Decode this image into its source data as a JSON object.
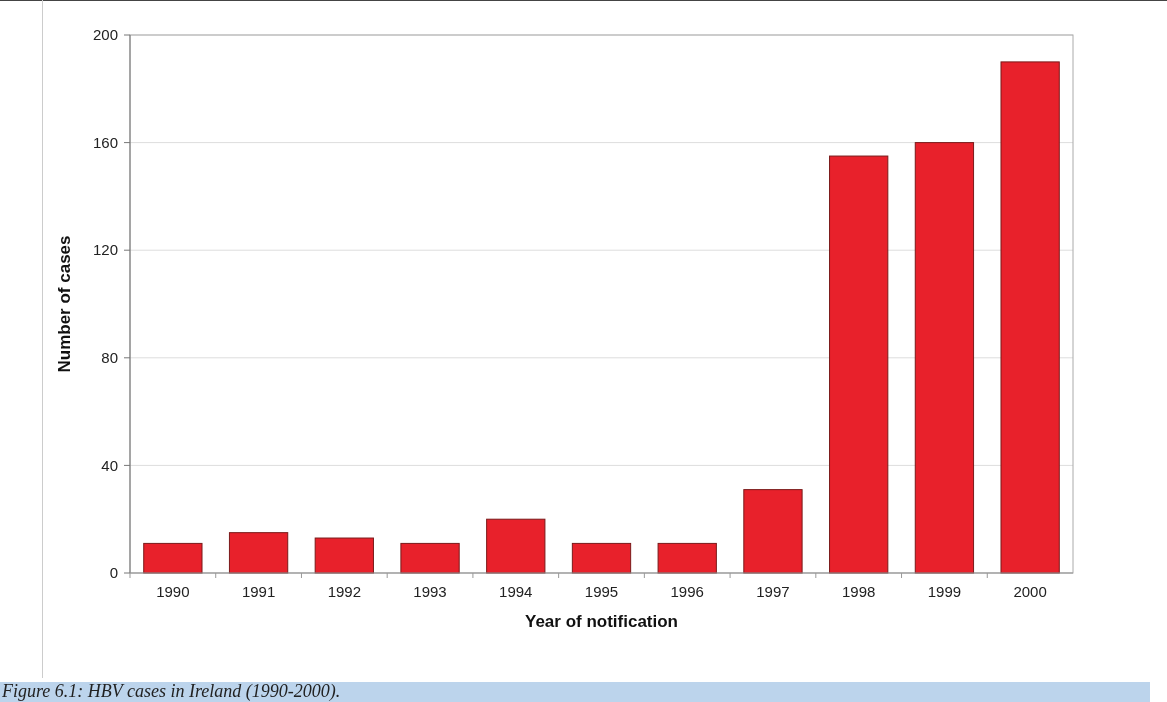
{
  "chart_data": {
    "type": "bar",
    "xlabel": "Year of notification",
    "ylabel": "Number of cases",
    "categories": [
      "1990",
      "1991",
      "1992",
      "1993",
      "1994",
      "1995",
      "1996",
      "1997",
      "1998",
      "1999",
      "2000"
    ],
    "values": [
      11,
      15,
      13,
      11,
      20,
      11,
      11,
      31,
      155,
      160,
      190
    ],
    "color": "#e8212b",
    "ylim": [
      0,
      200
    ],
    "yticks": [
      0,
      40,
      80,
      120,
      160,
      200
    ],
    "grid": "y",
    "annotations": [
      "Figure 6.1: HBV cases in Ireland (1990-2000)."
    ]
  }
}
